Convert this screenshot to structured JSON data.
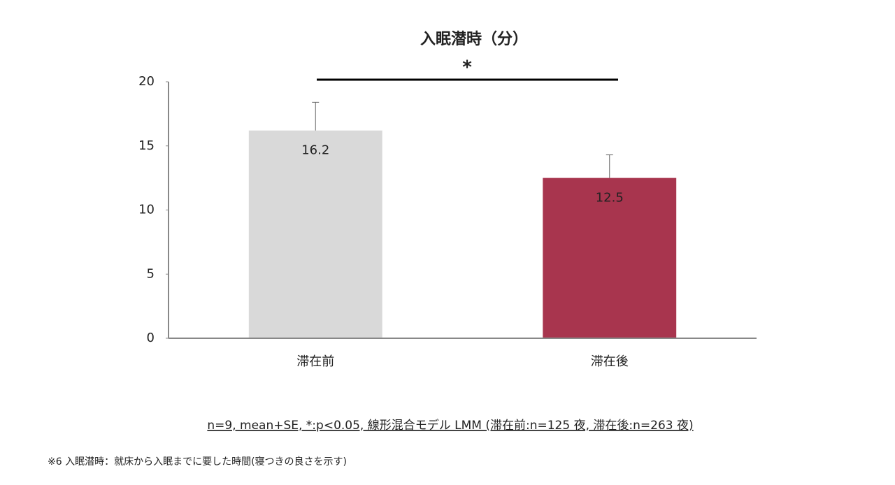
{
  "chart_data": {
    "type": "bar",
    "title": "入眠潜時（分）",
    "categories": [
      "滞在前",
      "滞在後"
    ],
    "values": [
      16.2,
      12.5
    ],
    "errors": [
      2.2,
      1.8
    ],
    "colors": [
      "#d9d9d9",
      "#a8354e"
    ],
    "ylim": [
      0,
      20
    ],
    "yticks": [
      0,
      5,
      10,
      15,
      20
    ],
    "significance": "*",
    "note": "n=9, mean+SE, *:p<0.05, 線形混合モデル LMM (滞在前:n=125 夜, 滞在後:n=263 夜)",
    "footnote": "※6 入眠潜時：就床から入眠までに要した時間(寝つきの良さを示す)"
  }
}
